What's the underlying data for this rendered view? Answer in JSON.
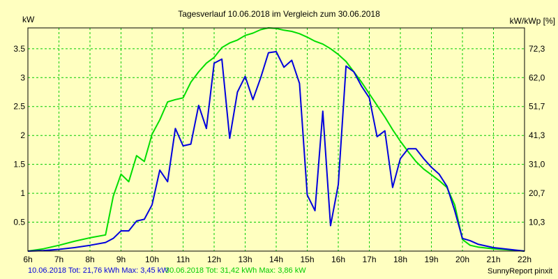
{
  "chart_data": {
    "type": "line",
    "title": "Tagesverlauf 10.06.2018 im Vergleich zum 30.06.2018",
    "ylabel_left": "kW",
    "ylabel_right": "kW/kWp [%]",
    "xlim": [
      6,
      22
    ],
    "ylim": [
      0,
      3.86
    ],
    "x_ticks": [
      6,
      7,
      8,
      9,
      10,
      11,
      12,
      13,
      14,
      15,
      16,
      17,
      18,
      19,
      20,
      21,
      22
    ],
    "x_tick_labels": [
      "6h",
      "7h",
      "8h",
      "9h",
      "10h",
      "11h",
      "12h",
      "13h",
      "14h",
      "15h",
      "16h",
      "17h",
      "18h",
      "19h",
      "20h",
      "21h",
      "22h"
    ],
    "y_ticks_left": [
      0.5,
      1,
      1.5,
      2,
      2.5,
      3,
      3.5
    ],
    "y_tick_labels_left": [
      "0.5",
      "1",
      "1.5",
      "2",
      "2.5",
      "3",
      "3.5"
    ],
    "y_ticks_right_at": [
      0.5,
      1,
      1.5,
      2,
      2.5,
      3,
      3.5
    ],
    "y_tick_labels_right": [
      "10,3",
      "20,7",
      "31,0",
      "41,3",
      "51,7",
      "62,0",
      "72,3"
    ],
    "grid": true,
    "series": [
      {
        "name": "10.06.2018",
        "color": "#0000dd",
        "points": [
          [
            6,
            0
          ],
          [
            6.5,
            0.01
          ],
          [
            7,
            0.03
          ],
          [
            7.5,
            0.06
          ],
          [
            8,
            0.1
          ],
          [
            8.5,
            0.15
          ],
          [
            8.75,
            0.22
          ],
          [
            9,
            0.35
          ],
          [
            9.25,
            0.35
          ],
          [
            9.5,
            0.52
          ],
          [
            9.75,
            0.55
          ],
          [
            10,
            0.8
          ],
          [
            10.25,
            1.4
          ],
          [
            10.5,
            1.2
          ],
          [
            10.75,
            2.12
          ],
          [
            11,
            1.82
          ],
          [
            11.25,
            1.85
          ],
          [
            11.5,
            2.52
          ],
          [
            11.75,
            2.12
          ],
          [
            12,
            3.25
          ],
          [
            12.25,
            3.32
          ],
          [
            12.5,
            1.95
          ],
          [
            12.75,
            2.75
          ],
          [
            13,
            3.02
          ],
          [
            13.25,
            2.62
          ],
          [
            13.5,
            3.0
          ],
          [
            13.75,
            3.43
          ],
          [
            14,
            3.45
          ],
          [
            14.25,
            3.18
          ],
          [
            14.5,
            3.3
          ],
          [
            14.75,
            2.9
          ],
          [
            15,
            0.97
          ],
          [
            15.25,
            0.7
          ],
          [
            15.5,
            2.42
          ],
          [
            15.75,
            0.44
          ],
          [
            16,
            1.15
          ],
          [
            16.25,
            3.2
          ],
          [
            16.5,
            3.1
          ],
          [
            16.75,
            2.85
          ],
          [
            17,
            2.65
          ],
          [
            17.25,
            1.98
          ],
          [
            17.5,
            2.08
          ],
          [
            17.75,
            1.1
          ],
          [
            18,
            1.6
          ],
          [
            18.25,
            1.77
          ],
          [
            18.5,
            1.77
          ],
          [
            18.75,
            1.6
          ],
          [
            19,
            1.45
          ],
          [
            19.25,
            1.33
          ],
          [
            19.5,
            1.12
          ],
          [
            19.75,
            0.7
          ],
          [
            20,
            0.22
          ],
          [
            20.25,
            0.18
          ],
          [
            20.5,
            0.12
          ],
          [
            21,
            0.06
          ],
          [
            21.5,
            0.03
          ],
          [
            22,
            0
          ]
        ]
      },
      {
        "name": "30.06.2018",
        "color": "#00dd00",
        "points": [
          [
            6,
            0
          ],
          [
            6.5,
            0.04
          ],
          [
            7,
            0.1
          ],
          [
            7.5,
            0.17
          ],
          [
            8,
            0.23
          ],
          [
            8.5,
            0.28
          ],
          [
            8.75,
            0.95
          ],
          [
            9,
            1.33
          ],
          [
            9.25,
            1.2
          ],
          [
            9.5,
            1.65
          ],
          [
            9.75,
            1.55
          ],
          [
            10,
            2.02
          ],
          [
            10.25,
            2.27
          ],
          [
            10.5,
            2.58
          ],
          [
            10.75,
            2.62
          ],
          [
            11,
            2.65
          ],
          [
            11.25,
            2.92
          ],
          [
            11.5,
            3.1
          ],
          [
            11.75,
            3.25
          ],
          [
            12,
            3.35
          ],
          [
            12.25,
            3.52
          ],
          [
            12.5,
            3.6
          ],
          [
            12.75,
            3.65
          ],
          [
            13,
            3.73
          ],
          [
            13.25,
            3.77
          ],
          [
            13.5,
            3.83
          ],
          [
            13.75,
            3.86
          ],
          [
            14,
            3.85
          ],
          [
            14.25,
            3.82
          ],
          [
            14.5,
            3.8
          ],
          [
            14.75,
            3.76
          ],
          [
            15,
            3.7
          ],
          [
            15.25,
            3.63
          ],
          [
            15.5,
            3.58
          ],
          [
            15.75,
            3.5
          ],
          [
            16,
            3.4
          ],
          [
            16.25,
            3.28
          ],
          [
            16.5,
            3.1
          ],
          [
            16.75,
            2.92
          ],
          [
            17,
            2.72
          ],
          [
            17.25,
            2.52
          ],
          [
            17.5,
            2.32
          ],
          [
            17.75,
            2.1
          ],
          [
            18,
            1.9
          ],
          [
            18.25,
            1.72
          ],
          [
            18.5,
            1.55
          ],
          [
            18.75,
            1.42
          ],
          [
            19,
            1.32
          ],
          [
            19.25,
            1.22
          ],
          [
            19.5,
            1.1
          ],
          [
            19.75,
            0.8
          ],
          [
            20,
            0.2
          ],
          [
            20.25,
            0.1
          ],
          [
            20.5,
            0.07
          ],
          [
            21,
            0.04
          ],
          [
            21.5,
            0.02
          ],
          [
            22,
            0
          ]
        ]
      }
    ]
  },
  "legend": {
    "series1_text": "10.06.2018 Tot: 21,76 kWh Max: 3,45 kW",
    "series2_text": "30.06.2018 Tot: 31,42 kWh Max: 3,86 kW"
  },
  "credit": "SunnyReport pinxit",
  "colors": {
    "background": "#ffffc0",
    "plot_background": "#ffffc0",
    "grid": "#00cc00",
    "series1": "#0000dd",
    "series2": "#00dd00"
  }
}
